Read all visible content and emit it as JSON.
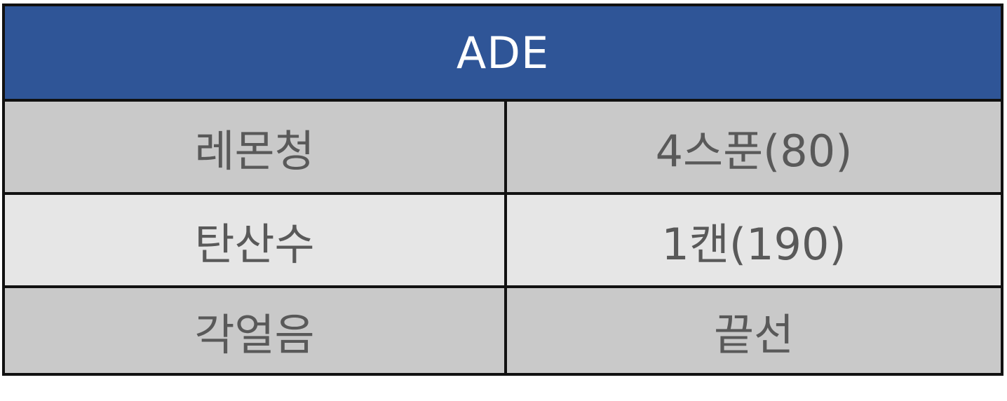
{
  "table": {
    "title": "ADE",
    "rows": [
      {
        "ingredient": "레몬청",
        "amount": "4스푼(80)"
      },
      {
        "ingredient": "탄산수",
        "amount": "1캔(190)"
      },
      {
        "ingredient": "각얼음",
        "amount": "끝선"
      }
    ]
  },
  "colors": {
    "header_bg": "#2f5597",
    "header_text": "#ffffff",
    "row_dark": "#c9c9c9",
    "row_light": "#e6e6e6",
    "cell_text": "#595959",
    "border": "#111111"
  }
}
